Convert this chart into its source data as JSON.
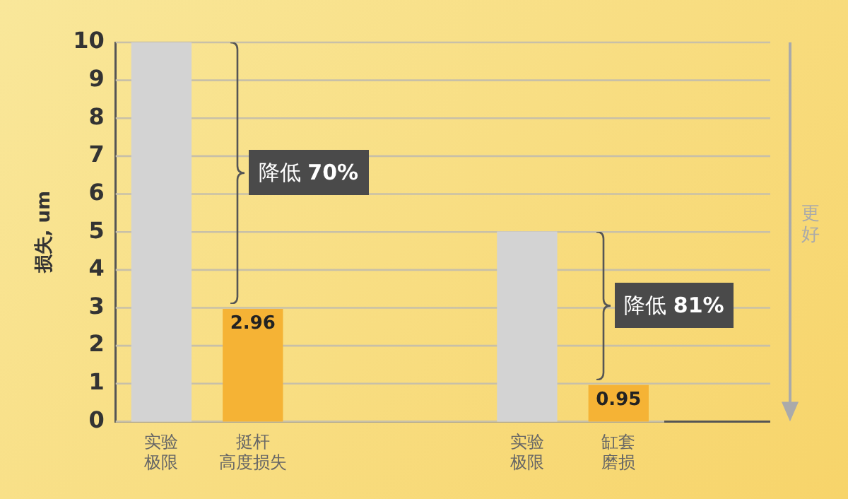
{
  "chart_data": {
    "type": "bar",
    "ylabel": "损失, um",
    "categories": [
      "实验极限",
      "挺杆高度损失",
      null,
      null,
      "实验极限",
      "缸套磨损"
    ],
    "values": [
      10,
      2.96,
      null,
      null,
      5,
      0.95
    ],
    "colors": [
      "#d3d3d3",
      "#f5b335",
      null,
      null,
      "#d3d3d3",
      "#f5b335"
    ],
    "value_labels": [
      null,
      "2.96",
      null,
      null,
      null,
      "0.95"
    ],
    "ylim": [
      0,
      10
    ],
    "yticks": [
      0,
      1,
      2,
      3,
      4,
      5,
      6,
      7,
      8,
      9,
      10
    ],
    "grid": "y",
    "annotations": [
      "降低 70%",
      "降低 81%",
      "更好"
    ]
  }
}
